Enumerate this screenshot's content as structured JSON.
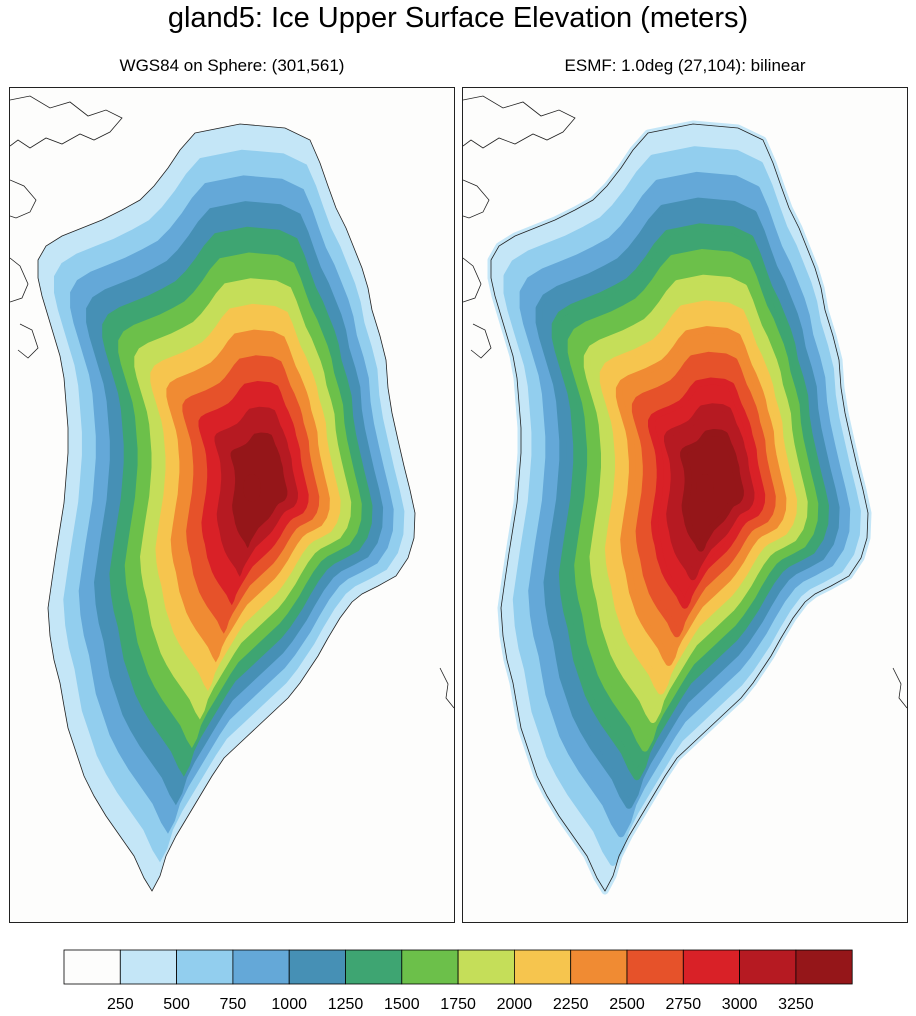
{
  "title": "gland5: Ice Upper Surface Elevation (meters)",
  "panels": [
    {
      "subtitle": "WGS84 on Sphere: (301,561)",
      "style": "fine"
    },
    {
      "subtitle": "ESMF: 1.0deg (27,104): bilinear",
      "style": "coarse"
    }
  ],
  "legend": {
    "colors": [
      "#fdfdfc",
      "#c4e6f7",
      "#92ceee",
      "#64a8d8",
      "#4690b5",
      "#3ea572",
      "#6cc04a",
      "#c5de59",
      "#f6c54e",
      "#f08b33",
      "#e6522a",
      "#d92127",
      "#b61a22",
      "#951619"
    ],
    "labels": [
      "250",
      "500",
      "750",
      "1000",
      "1250",
      "1500",
      "1750",
      "2000",
      "2250",
      "2500",
      "2750",
      "3000",
      "3250"
    ]
  }
}
